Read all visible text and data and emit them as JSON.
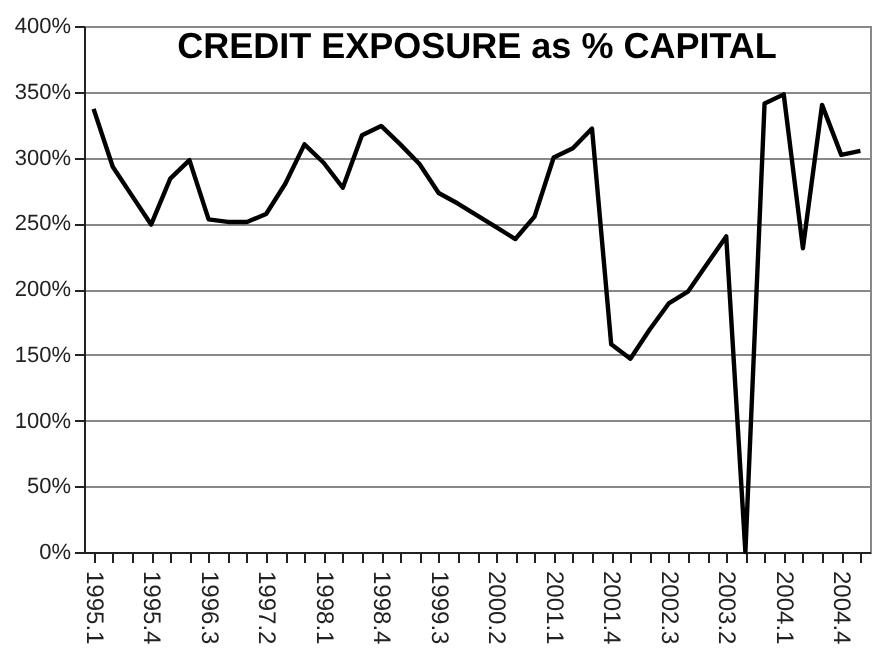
{
  "chart_data": {
    "type": "line",
    "title": "CREDIT EXPOSURE as % CAPITAL",
    "categories": [
      "1995.1",
      null,
      null,
      "1995.4",
      null,
      null,
      "1996.3",
      null,
      null,
      "1997.2",
      null,
      null,
      "1998.1",
      null,
      null,
      "1998.4",
      null,
      null,
      "1999.3",
      null,
      null,
      "2000.2",
      null,
      null,
      "2001.1",
      null,
      null,
      "2001.4",
      null,
      null,
      "2002.3",
      null,
      null,
      "2003.2",
      null,
      null,
      "2004.1",
      null,
      null,
      "2004.4",
      null
    ],
    "series": [
      {
        "color": "#000000",
        "values": [
          337,
          293,
          271,
          249,
          284,
          298,
          253,
          251,
          251,
          257,
          280,
          310,
          296,
          277,
          317,
          324,
          310,
          295,
          273,
          265,
          256,
          247,
          238,
          255,
          300,
          307,
          322,
          158,
          147,
          169,
          189,
          198,
          219,
          240,
          0,
          341,
          348,
          231,
          340,
          302,
          305
        ]
      }
    ],
    "ylim": [
      0,
      400
    ],
    "yticks": [
      {
        "value": 0,
        "label": "0%"
      },
      {
        "value": 50,
        "label": "50%"
      },
      {
        "value": 100,
        "label": "100%"
      },
      {
        "value": 150,
        "label": "150%"
      },
      {
        "value": 200,
        "label": "200%"
      },
      {
        "value": 250,
        "label": "250%"
      },
      {
        "value": 300,
        "label": "300%"
      },
      {
        "value": 350,
        "label": "350%"
      },
      {
        "value": 400,
        "label": "400%"
      }
    ],
    "grid": "y",
    "marker": "none",
    "line_style": "solid"
  }
}
